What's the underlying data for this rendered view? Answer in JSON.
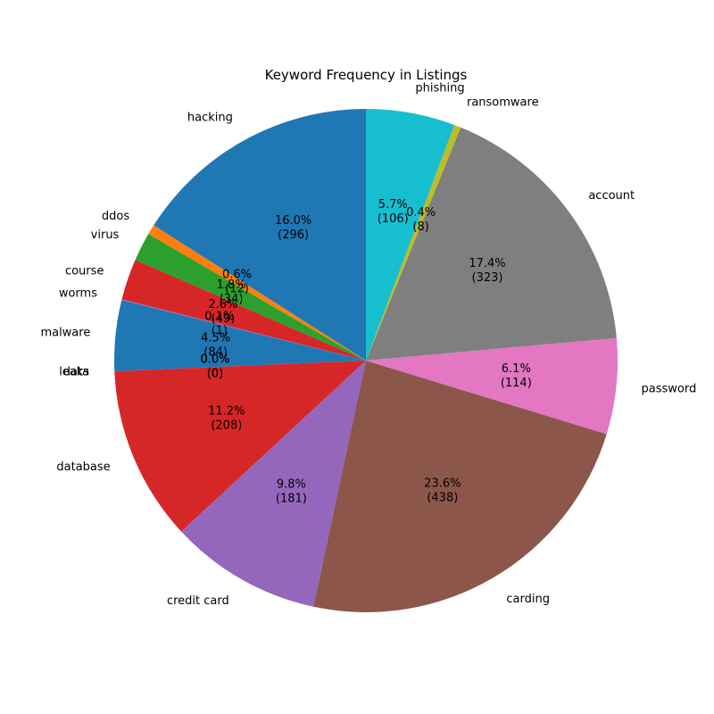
{
  "chart_data": {
    "type": "pie",
    "title": "Keyword Frequency in Listings",
    "start_angle_deg": 90,
    "direction": "counterclockwise",
    "slices": [
      {
        "label": "hacking",
        "value": 296,
        "pct": "16.0%",
        "count": "(296)",
        "color": "#1f77b4"
      },
      {
        "label": "ddos",
        "value": 12,
        "pct": "0.6%",
        "count": "(12)",
        "color": "#ff7f0e"
      },
      {
        "label": "virus",
        "value": 34,
        "pct": "1.8%",
        "count": "(34)",
        "color": "#2ca02c"
      },
      {
        "label": "course",
        "value": 49,
        "pct": "2.6%",
        "count": "(49)",
        "color": "#d62728"
      },
      {
        "label": "worms",
        "value": 1,
        "pct": "0.1%",
        "count": "(1)",
        "color": "#9467bd"
      },
      {
        "label": "malware",
        "value": 84,
        "pct": "4.5%",
        "count": "(84)",
        "color": "#1f77b4"
      },
      {
        "label": "data",
        "value": 0,
        "pct": "0.0%",
        "count": "(0)",
        "color": "#8c564b"
      },
      {
        "label": "leaks",
        "value": 0,
        "pct": "0.0%",
        "count": "(0)",
        "color": "#e377c2"
      },
      {
        "label": "database",
        "value": 208,
        "pct": "11.2%",
        "count": "(208)",
        "color": "#d62728"
      },
      {
        "label": "credit card",
        "value": 181,
        "pct": "9.8%",
        "count": "(181)",
        "color": "#9467bd"
      },
      {
        "label": "carding",
        "value": 438,
        "pct": "23.6%",
        "count": "(438)",
        "color": "#8c564b"
      },
      {
        "label": "password",
        "value": 114,
        "pct": "6.1%",
        "count": "(114)",
        "color": "#e377c2"
      },
      {
        "label": "account",
        "value": 323,
        "pct": "17.4%",
        "count": "(323)",
        "color": "#7f7f7f"
      },
      {
        "label": "ransomware",
        "value": 8,
        "pct": "0.4%",
        "count": "(8)",
        "color": "#bcbd22"
      },
      {
        "label": "phishing",
        "value": 106,
        "pct": "5.7%",
        "count": "(106)",
        "color": "#17becf"
      }
    ]
  }
}
